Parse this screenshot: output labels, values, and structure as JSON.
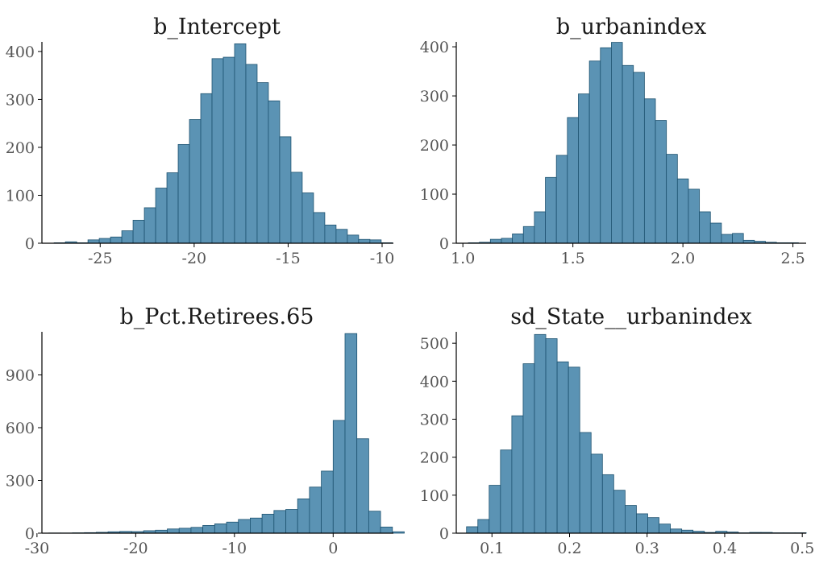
{
  "style": {
    "bar_fill": "#5b93b4",
    "bar_stroke": "#1d5270",
    "axis_color": "#000000",
    "tick_label_color": "#555555"
  },
  "chart_data": [
    {
      "type": "bar",
      "title": "b_Intercept",
      "xlabel": "",
      "ylabel": "",
      "xlim": [
        -28.1,
        -9.4
      ],
      "ylim": [
        0,
        420
      ],
      "xticks": [
        -25,
        -20,
        -15,
        -10
      ],
      "xtick_labels": [
        "-25",
        "-20",
        "-15",
        "-10"
      ],
      "yticks": [
        0,
        100,
        200,
        300,
        400
      ],
      "ytick_labels": [
        "0",
        "100",
        "200",
        "300",
        "400"
      ],
      "bin_start": -27.45,
      "bin_width": 0.6,
      "counts": [
        1,
        3,
        1,
        7,
        10,
        13,
        26,
        48,
        74,
        115,
        147,
        206,
        258,
        312,
        385,
        388,
        416,
        373,
        335,
        297,
        222,
        148,
        105,
        64,
        38,
        29,
        17,
        8,
        7,
        1
      ]
    },
    {
      "type": "bar",
      "title": "b_urbanindex",
      "xlabel": "",
      "ylabel": "",
      "xlim": [
        0.97,
        2.56
      ],
      "ylim": [
        0,
        410
      ],
      "xticks": [
        1.0,
        1.5,
        2.0,
        2.5
      ],
      "xtick_labels": [
        "1.0",
        "1.5",
        "2.0",
        "2.5"
      ],
      "yticks": [
        0,
        100,
        200,
        300,
        400
      ],
      "ytick_labels": [
        "0",
        "100",
        "200",
        "300",
        "400"
      ],
      "bin_start": 1.025,
      "bin_width": 0.05,
      "counts": [
        1,
        2,
        8,
        10,
        19,
        34,
        64,
        134,
        179,
        256,
        304,
        371,
        398,
        409,
        362,
        348,
        294,
        250,
        181,
        131,
        110,
        64,
        41,
        18,
        20,
        6,
        4,
        2,
        1,
        1
      ]
    },
    {
      "type": "bar",
      "title": "b_Pct.Retirees.65",
      "xlabel": "",
      "ylabel": "",
      "xlim": [
        -29.5,
        6.1
      ],
      "ylim": [
        0,
        1145
      ],
      "xticks": [
        -30,
        -20,
        -10,
        0
      ],
      "xtick_labels": [
        "-30",
        "-20",
        "-10",
        "0"
      ],
      "yticks": [
        0,
        300,
        600,
        900
      ],
      "ytick_labels": [
        "0",
        "300",
        "600",
        "900"
      ],
      "bin_start": -28.8,
      "bin_width": 1.2,
      "counts": [
        1,
        1,
        2,
        3,
        5,
        8,
        10,
        9,
        14,
        17,
        24,
        28,
        33,
        44,
        53,
        63,
        78,
        86,
        108,
        129,
        135,
        195,
        262,
        353,
        641,
        1135,
        537,
        125,
        35,
        8
      ]
    },
    {
      "type": "bar",
      "title": "sd_State__urbanindex",
      "xlabel": "",
      "ylabel": "",
      "xlim": [
        0.054,
        0.505
      ],
      "ylim": [
        0,
        530
      ],
      "xticks": [
        0.1,
        0.2,
        0.3,
        0.4,
        0.5
      ],
      "xtick_labels": [
        "0.1",
        "0.2",
        "0.3",
        "0.4",
        "0.5"
      ],
      "yticks": [
        0,
        100,
        200,
        300,
        400,
        500
      ],
      "ytick_labels": [
        "0",
        "100",
        "200",
        "300",
        "400",
        "500"
      ],
      "bin_start": 0.0672,
      "bin_width": 0.0146,
      "counts": [
        17,
        36,
        126,
        219,
        309,
        446,
        523,
        512,
        451,
        437,
        265,
        208,
        154,
        113,
        73,
        51,
        41,
        24,
        11,
        8,
        5,
        2,
        5,
        3,
        1,
        2,
        2,
        1,
        1,
        1
      ]
    }
  ]
}
